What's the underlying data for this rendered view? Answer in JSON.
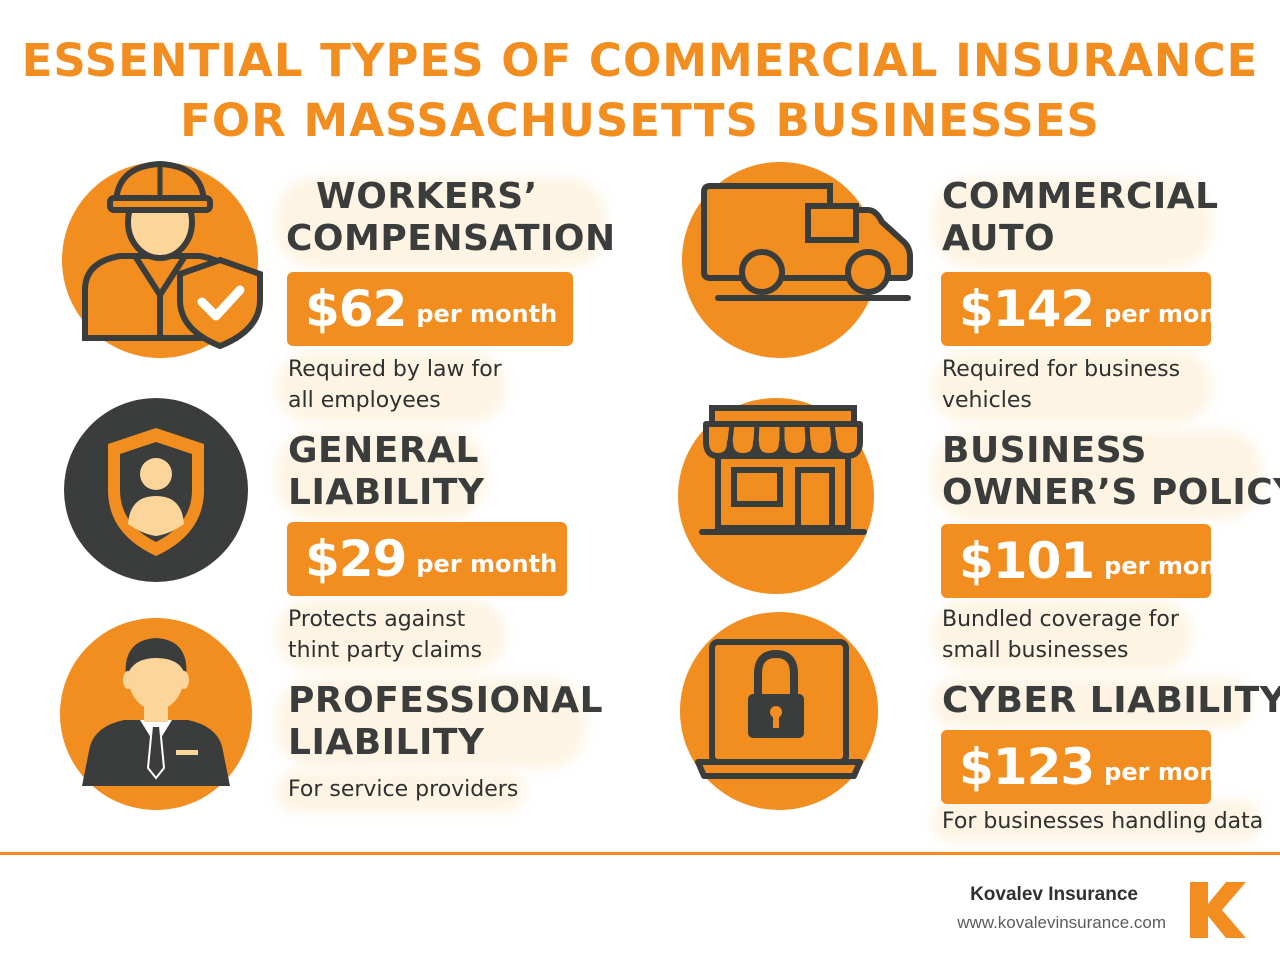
{
  "title": {
    "line1": "ESSENTIAL TYPES OF COMMERCIAL INSURANCE",
    "line2": "FOR MASSACHUSETTS BUSINESSES"
  },
  "items": [
    {
      "icon": "worker-shield-icon",
      "heading1": "WORKERS’",
      "heading2": "COMPENSATION",
      "amount": "$62",
      "per": "per month",
      "desc1": "Required by law for",
      "desc2": "all employees"
    },
    {
      "icon": "delivery-van-icon",
      "heading1": "COMMERCIAL",
      "heading2": "AUTO",
      "amount": "$142",
      "per": "per month",
      "desc1": "Required for business",
      "desc2": "vehicles"
    },
    {
      "icon": "shield-person-icon",
      "heading1": "GENERAL",
      "heading2": "LIABILITY",
      "amount": "$29",
      "per": "per month",
      "desc1": "Protects against",
      "desc2": "thint party claims"
    },
    {
      "icon": "storefront-icon",
      "heading1": "BUSINESS",
      "heading2": "OWNER’S POLICY",
      "amount": "$101",
      "per": "per montn",
      "desc1": "Bundled coverage for",
      "desc2": "small businesses"
    },
    {
      "icon": "businessman-icon",
      "heading1": "PROFESSIONAL",
      "heading2": "LIABILITY",
      "desc1": "For service providers"
    },
    {
      "icon": "laptop-lock-icon",
      "heading1": "CYBER LIABILITY",
      "amount": "$123",
      "per": "per month",
      "desc1": "For businesses handling data"
    }
  ],
  "footer": {
    "brand": "Kovalev Insurance",
    "url": "www.kovalevinsurance.com",
    "logo_letter": "K"
  },
  "colors": {
    "accent": "#f28d1f",
    "dark": "#3a3d3c",
    "skin": "#fcd59b",
    "wash": "#fdf4e3"
  }
}
